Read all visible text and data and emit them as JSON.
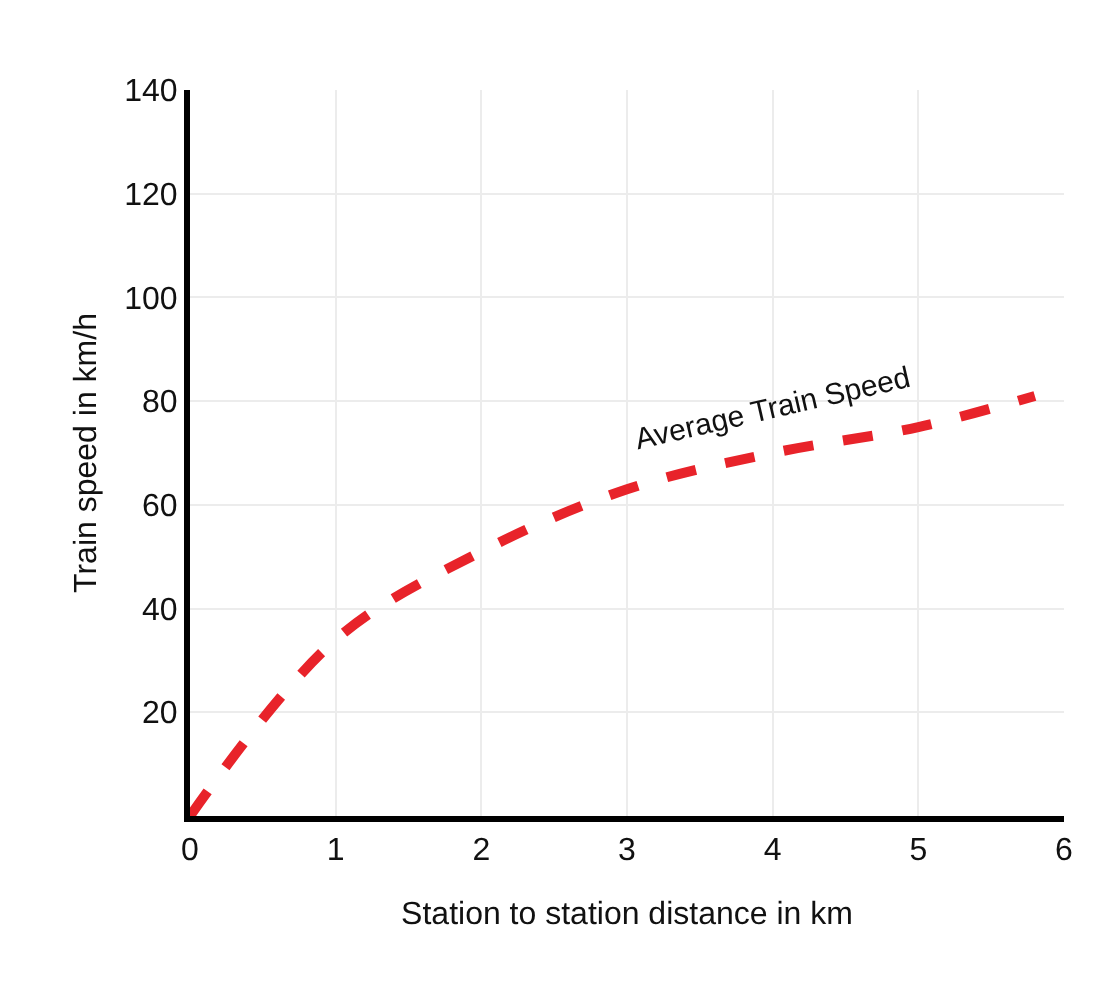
{
  "chart_data": {
    "type": "line",
    "xlabel": "Station to station distance in km",
    "ylabel": "Train speed in km/h",
    "x": [
      0,
      1,
      2,
      3,
      4,
      5,
      5.8
    ],
    "series": [
      {
        "color": "#e8232a",
        "values": [
          0,
          34,
          51,
          63,
          70,
          75,
          81
        ]
      }
    ],
    "xlim": [
      0,
      6
    ],
    "xticks": [
      0,
      1,
      2,
      3,
      4,
      5,
      6
    ],
    "ylim": [
      0,
      140
    ],
    "yticks": [
      20,
      40,
      60,
      80,
      100,
      120,
      140
    ],
    "annotations": [
      {
        "text": "Average Train Speed",
        "x": 4,
        "y": 70
      }
    ],
    "grid": true,
    "line_style": "dashed",
    "marker": "none"
  }
}
